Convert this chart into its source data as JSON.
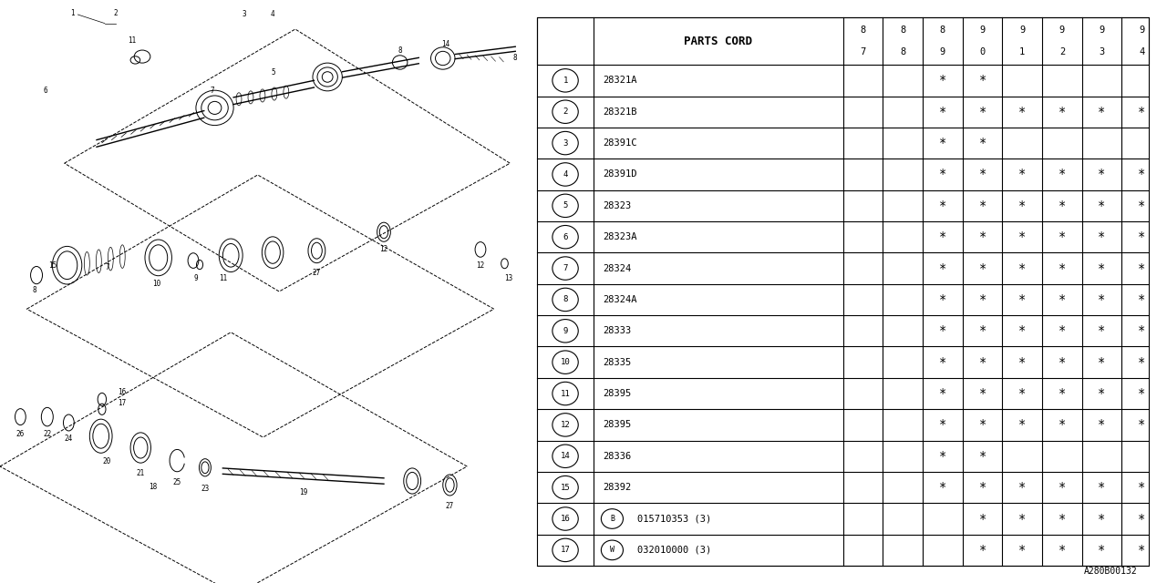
{
  "title": "",
  "bg_color": "#ffffff",
  "table_header": "PARTS CORD",
  "year_cols": [
    "8\n7",
    "8\n8",
    "8\n9",
    "9\n0",
    "9\n1",
    "9\n2",
    "9\n3",
    "9\n4"
  ],
  "rows": [
    {
      "num": "1",
      "part": "28321A",
      "marks": [
        0,
        0,
        1,
        1,
        0,
        0,
        0,
        0
      ]
    },
    {
      "num": "2",
      "part": "28321B",
      "marks": [
        0,
        0,
        1,
        1,
        1,
        1,
        1,
        1
      ]
    },
    {
      "num": "3",
      "part": "28391C",
      "marks": [
        0,
        0,
        1,
        1,
        0,
        0,
        0,
        0
      ]
    },
    {
      "num": "4",
      "part": "28391D",
      "marks": [
        0,
        0,
        1,
        1,
        1,
        1,
        1,
        1
      ]
    },
    {
      "num": "5",
      "part": "28323",
      "marks": [
        0,
        0,
        1,
        1,
        1,
        1,
        1,
        1
      ]
    },
    {
      "num": "6",
      "part": "28323A",
      "marks": [
        0,
        0,
        1,
        1,
        1,
        1,
        1,
        1
      ]
    },
    {
      "num": "7",
      "part": "28324",
      "marks": [
        0,
        0,
        1,
        1,
        1,
        1,
        1,
        1
      ]
    },
    {
      "num": "8",
      "part": "28324A",
      "marks": [
        0,
        0,
        1,
        1,
        1,
        1,
        1,
        1
      ]
    },
    {
      "num": "9",
      "part": "28333",
      "marks": [
        0,
        0,
        1,
        1,
        1,
        1,
        1,
        1
      ]
    },
    {
      "num": "10",
      "part": "28335",
      "marks": [
        0,
        0,
        1,
        1,
        1,
        1,
        1,
        1
      ]
    },
    {
      "num": "11",
      "part": "28395",
      "marks": [
        0,
        0,
        1,
        1,
        1,
        1,
        1,
        1
      ]
    },
    {
      "num": "12",
      "part": "28395",
      "marks": [
        0,
        0,
        1,
        1,
        1,
        1,
        1,
        1
      ]
    },
    {
      "num": "14",
      "part": "28336",
      "marks": [
        0,
        0,
        1,
        1,
        0,
        0,
        0,
        0
      ]
    },
    {
      "num": "15",
      "part": "28392",
      "marks": [
        0,
        0,
        1,
        1,
        1,
        1,
        1,
        1
      ]
    },
    {
      "num": "16",
      "part": "B 015710353 (3)",
      "marks": [
        0,
        0,
        0,
        1,
        1,
        1,
        1,
        1
      ]
    },
    {
      "num": "17",
      "part": "W 032010000 (3)",
      "marks": [
        0,
        0,
        0,
        1,
        1,
        1,
        1,
        1
      ]
    }
  ],
  "footer": "A280B00132",
  "line_color": "#000000",
  "text_color": "#000000"
}
